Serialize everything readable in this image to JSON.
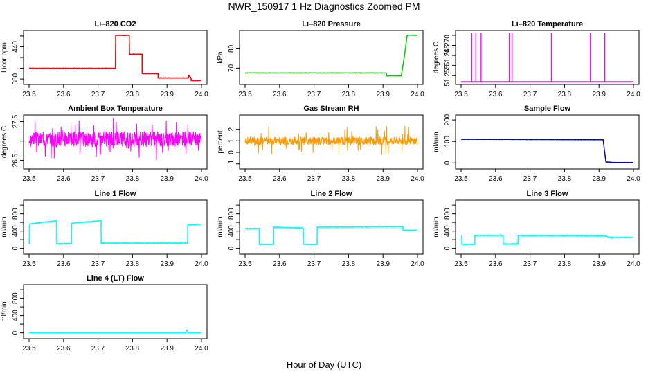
{
  "figure": {
    "title": "NWR_150917  1 Hz Diagnostics Zoomed PM",
    "xlabel": "Hour of Day (UTC)"
  },
  "chart_data": [
    {
      "id": "co2",
      "type": "line",
      "title": "Li–820 CO2",
      "ylabel": "Licor ppm",
      "color": "#ff0000",
      "xlim": [
        23.5,
        24.0
      ],
      "ylim": [
        375,
        465
      ],
      "xticks": [
        23.5,
        23.6,
        23.7,
        23.8,
        23.9,
        24.0
      ],
      "xtick_labels": [
        "23.5",
        "23.6",
        "23.7",
        "23.8",
        "23.9",
        "24.0"
      ],
      "yticks": [
        380,
        400,
        420,
        440,
        460
      ],
      "ytick_labels": [
        "380",
        "",
        "",
        "440",
        ""
      ],
      "noise": 0.6,
      "seed": 11,
      "series": [
        {
          "x": [
            23.5,
            23.751,
            23.751,
            23.7905,
            23.7905,
            23.828,
            23.828,
            23.874,
            23.874,
            23.9625,
            23.9625,
            23.97,
            23.97,
            23.999
          ],
          "y": [
            400,
            400,
            461,
            461,
            426,
            426,
            390,
            390,
            382,
            382,
            387,
            382,
            377,
            377
          ]
        }
      ]
    },
    {
      "id": "pressure",
      "type": "line",
      "title": "Li–820 Pressure",
      "ylabel": "kPa",
      "color": "#00cc00",
      "xlim": [
        23.5,
        24.0
      ],
      "ylim": [
        63,
        88
      ],
      "xticks": [
        23.5,
        23.6,
        23.7,
        23.8,
        23.9,
        24.0
      ],
      "xtick_labels": [
        "23.5",
        "23.6",
        "23.7",
        "23.8",
        "23.9",
        "24.0"
      ],
      "yticks": [
        70,
        80
      ],
      "ytick_labels": [
        "70",
        "80"
      ],
      "noise": 0.15,
      "seed": 12,
      "series": [
        {
          "x": [
            23.5,
            23.91,
            23.91,
            23.953,
            23.962,
            23.97,
            23.999
          ],
          "y": [
            67.5,
            67.5,
            66,
            66,
            76,
            87,
            87
          ]
        }
      ]
    },
    {
      "id": "temp",
      "type": "spikes",
      "title": "Li–820 Temperature",
      "ylabel": "degrees C",
      "color": "#ff00ff",
      "xlim": [
        23.5,
        24.0
      ],
      "ylim": [
        51.252,
        51.276
      ],
      "xticks": [
        23.5,
        23.6,
        23.7,
        23.8,
        23.9,
        24.0
      ],
      "xtick_labels": [
        "23.5",
        "23.6",
        "23.7",
        "23.8",
        "23.9",
        "24.0"
      ],
      "yticks": [
        51.255,
        51.26,
        51.265,
        51.27,
        51.275
      ],
      "ytick_labels": [
        "51.255",
        "",
        "51.265",
        "51.270",
        ""
      ],
      "baseline": 51.252,
      "spikes_x": [
        23.531,
        23.543,
        23.558,
        23.64,
        23.648,
        23.762,
        23.875,
        23.917
      ],
      "spikes_y": [
        51.276,
        51.276,
        51.276,
        51.276,
        51.276,
        51.276,
        51.276,
        51.276
      ]
    },
    {
      "id": "ambient",
      "type": "noise",
      "title": "Ambient Box Temperature",
      "ylabel": "degrees C",
      "color": "#ff00ff",
      "xlim": [
        23.5,
        24.0
      ],
      "ylim": [
        26.35,
        27.6
      ],
      "xticks": [
        23.5,
        23.6,
        23.7,
        23.8,
        23.9,
        24.0
      ],
      "xtick_labels": [
        "23.5",
        "23.6",
        "23.7",
        "23.8",
        "23.9",
        "24.0"
      ],
      "yticks": [
        26.5,
        27.0,
        27.5
      ],
      "ytick_labels": [
        "26.5",
        "",
        "27.5"
      ],
      "mean": 27.05,
      "amp": 0.2,
      "spike_amp": 0.55,
      "seed": 3
    },
    {
      "id": "rh",
      "type": "noise",
      "title": "Gas Stream RH",
      "ylabel": "percent",
      "color": "#ff9900",
      "xlim": [
        23.5,
        24.0
      ],
      "ylim": [
        -1.2,
        3.0
      ],
      "xticks": [
        23.5,
        23.6,
        23.7,
        23.8,
        23.9,
        24.0
      ],
      "xtick_labels": [
        "23.5",
        "23.6",
        "23.7",
        "23.8",
        "23.9",
        "24.0"
      ],
      "yticks": [
        -1,
        0,
        1,
        2
      ],
      "ytick_labels": [
        "−1",
        "0",
        "1",
        "2"
      ],
      "mean": 1.0,
      "amp": 0.35,
      "spike_amp": 1.3,
      "seed": 7
    },
    {
      "id": "sample",
      "type": "line",
      "title": "Sample Flow",
      "ylabel": "ml/min",
      "color": "#0000cc",
      "xlim": [
        23.5,
        24.0
      ],
      "ylim": [
        -15,
        210
      ],
      "xticks": [
        23.5,
        23.6,
        23.7,
        23.8,
        23.9,
        24.0
      ],
      "xtick_labels": [
        "23.5",
        "23.6",
        "23.7",
        "23.8",
        "23.9",
        "24.0"
      ],
      "yticks": [
        0,
        100,
        200
      ],
      "ytick_labels": [
        "0",
        "100",
        "200"
      ],
      "noise": 1.2,
      "seed": 5,
      "series": [
        {
          "x": [
            23.5,
            23.912,
            23.92,
            23.94,
            24.0
          ],
          "y": [
            110,
            108,
            5,
            2,
            2
          ]
        }
      ]
    },
    {
      "id": "line1",
      "type": "line",
      "title": "Line 1 Flow",
      "ylabel": "ml/min",
      "color": "#00ffff",
      "xlim": [
        23.5,
        24.0
      ],
      "ylim": [
        -70,
        1050
      ],
      "xticks": [
        23.5,
        23.6,
        23.7,
        23.8,
        23.9,
        24.0
      ],
      "xtick_labels": [
        "23.5",
        "23.6",
        "23.7",
        "23.8",
        "23.9",
        "24.0"
      ],
      "yticks": [
        0,
        200,
        400,
        600,
        800,
        1000
      ],
      "ytick_labels": [
        "0",
        "",
        "400",
        "",
        "800",
        ""
      ],
      "noise": 12,
      "seed": 21,
      "series": [
        {
          "x": [
            23.5,
            23.501,
            23.501,
            23.58,
            23.58,
            23.623,
            23.623,
            23.709,
            23.709,
            23.96,
            23.96,
            23.999
          ],
          "y": [
            110,
            110,
            560,
            640,
            110,
            110,
            580,
            640,
            120,
            120,
            540,
            560
          ]
        }
      ]
    },
    {
      "id": "line2",
      "type": "line",
      "title": "Line 2 Flow",
      "ylabel": "ml/min",
      "color": "#00ffff",
      "xlim": [
        23.5,
        24.0
      ],
      "ylim": [
        -70,
        1050
      ],
      "xticks": [
        23.5,
        23.6,
        23.7,
        23.8,
        23.9,
        24.0
      ],
      "xtick_labels": [
        "23.5",
        "23.6",
        "23.7",
        "23.8",
        "23.9",
        "24.0"
      ],
      "yticks": [
        0,
        200,
        400,
        600,
        800,
        1000
      ],
      "ytick_labels": [
        "0",
        "",
        "400",
        "",
        "800",
        ""
      ],
      "noise": 10,
      "seed": 22,
      "series": [
        {
          "x": [
            23.5,
            23.541,
            23.541,
            23.583,
            23.583,
            23.669,
            23.669,
            23.709,
            23.709,
            23.958,
            23.958,
            23.999
          ],
          "y": [
            460,
            460,
            90,
            90,
            490,
            470,
            90,
            90,
            490,
            500,
            420,
            420
          ]
        }
      ]
    },
    {
      "id": "line3",
      "type": "line",
      "title": "Line 3 Flow",
      "ylabel": "ml/min",
      "color": "#00ffff",
      "xlim": [
        23.5,
        24.0
      ],
      "ylim": [
        -70,
        1050
      ],
      "xticks": [
        23.5,
        23.6,
        23.7,
        23.8,
        23.9,
        24.0
      ],
      "xtick_labels": [
        "23.5",
        "23.6",
        "23.7",
        "23.8",
        "23.9",
        "24.0"
      ],
      "yticks": [
        0,
        200,
        400,
        600,
        800,
        1000
      ],
      "ytick_labels": [
        "0",
        "",
        "400",
        "",
        "800",
        ""
      ],
      "noise": 14,
      "seed": 23,
      "series": [
        {
          "x": [
            23.5,
            23.502,
            23.502,
            23.54,
            23.54,
            23.622,
            23.622,
            23.665,
            23.665,
            23.92,
            23.93,
            23.999
          ],
          "y": [
            280,
            280,
            90,
            90,
            300,
            300,
            100,
            100,
            300,
            290,
            250,
            250
          ]
        }
      ]
    },
    {
      "id": "line4",
      "type": "line",
      "title": "Line 4 (LT) Flow",
      "ylabel": "ml/min",
      "color": "#00ffff",
      "xlim": [
        23.5,
        24.0
      ],
      "ylim": [
        -70,
        1050
      ],
      "xticks": [
        23.5,
        23.6,
        23.7,
        23.8,
        23.9,
        24.0
      ],
      "xtick_labels": [
        "23.5",
        "23.6",
        "23.7",
        "23.8",
        "23.9",
        "24.0"
      ],
      "yticks": [
        0,
        200,
        400,
        600,
        800,
        1000
      ],
      "ytick_labels": [
        "0",
        "",
        "400",
        "",
        "800",
        ""
      ],
      "noise": 1,
      "seed": 24,
      "series": [
        {
          "x": [
            23.5,
            23.955,
            23.958,
            23.962,
            23.999
          ],
          "y": [
            3,
            3,
            70,
            3,
            3
          ]
        }
      ]
    }
  ]
}
